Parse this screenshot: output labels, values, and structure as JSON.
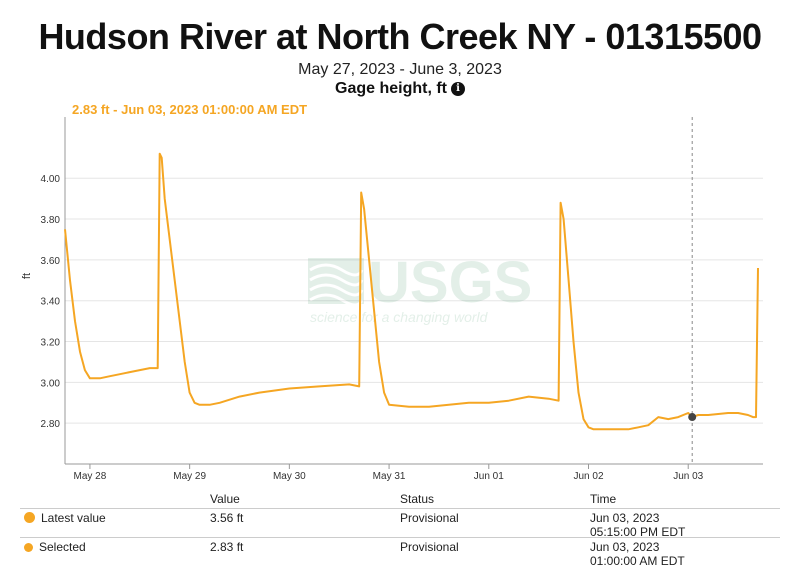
{
  "title": "Hudson River at North Creek NY - 01315500",
  "subtitle": "May 27, 2023 - June 3, 2023",
  "parameter": "Gage height, ft",
  "info_icon": "info-icon",
  "tooltip": "2.83 ft - Jun 03, 2023 01:00:00 AM EDT",
  "watermark": {
    "logo": "USGS",
    "tagline": "science for a changing world"
  },
  "colors": {
    "series": "#f5a623",
    "selected_marker": "#444444",
    "grid": "#e5e5e5"
  },
  "chart_data": {
    "type": "line",
    "title": "Hudson River at North Creek NY - 01315500",
    "subtitle": "May 27, 2023 - June 3, 2023",
    "ylabel": "ft",
    "xlabel": "",
    "ylim": [
      2.6,
      4.3
    ],
    "yticks": [
      2.8,
      3.0,
      3.2,
      3.4,
      3.6,
      3.8,
      4.0
    ],
    "ytick_labels": [
      "2.80",
      "3.00",
      "3.20",
      "3.40",
      "3.60",
      "3.80",
      "4.00"
    ],
    "xlim": [
      -0.25,
      6.75
    ],
    "xticks": [
      0,
      1,
      2,
      3,
      4,
      5,
      6
    ],
    "xtick_labels": [
      "May 28",
      "May 29",
      "May 30",
      "May 31",
      "Jun 01",
      "Jun 02",
      "Jun 03"
    ],
    "grid": true,
    "selected_x": 6.04,
    "series": [
      {
        "color": "#f5a623",
        "x": [
          -0.25,
          -0.2,
          -0.15,
          -0.1,
          -0.05,
          0.0,
          0.1,
          0.2,
          0.3,
          0.4,
          0.5,
          0.6,
          0.68,
          0.7,
          0.72,
          0.75,
          0.8,
          0.85,
          0.9,
          0.95,
          1.0,
          1.05,
          1.1,
          1.2,
          1.3,
          1.5,
          1.7,
          2.0,
          2.3,
          2.6,
          2.7,
          2.72,
          2.75,
          2.8,
          2.85,
          2.9,
          2.95,
          3.0,
          3.2,
          3.4,
          3.6,
          3.8,
          4.0,
          4.2,
          4.4,
          4.6,
          4.7,
          4.72,
          4.75,
          4.8,
          4.85,
          4.9,
          4.95,
          5.0,
          5.05,
          5.2,
          5.4,
          5.5,
          5.6,
          5.7,
          5.8,
          5.9,
          6.0,
          6.04,
          6.1,
          6.2,
          6.4,
          6.5,
          6.6,
          6.65,
          6.68,
          6.7
        ],
        "y": [
          3.75,
          3.5,
          3.3,
          3.15,
          3.06,
          3.02,
          3.02,
          3.03,
          3.04,
          3.05,
          3.06,
          3.07,
          3.07,
          4.12,
          4.1,
          3.9,
          3.7,
          3.5,
          3.3,
          3.1,
          2.95,
          2.9,
          2.89,
          2.89,
          2.9,
          2.93,
          2.95,
          2.97,
          2.98,
          2.99,
          2.98,
          3.93,
          3.85,
          3.6,
          3.35,
          3.1,
          2.95,
          2.89,
          2.88,
          2.88,
          2.89,
          2.9,
          2.9,
          2.91,
          2.93,
          2.92,
          2.91,
          3.88,
          3.8,
          3.5,
          3.2,
          2.95,
          2.82,
          2.78,
          2.77,
          2.77,
          2.77,
          2.78,
          2.79,
          2.83,
          2.82,
          2.83,
          2.85,
          2.83,
          2.84,
          2.84,
          2.85,
          2.85,
          2.84,
          2.83,
          2.83,
          3.56
        ]
      }
    ]
  },
  "table": {
    "headers": {
      "value": "Value",
      "status": "Status",
      "time": "Time"
    },
    "rows": [
      {
        "label": "Latest value",
        "value": "3.56 ft",
        "status": "Provisional",
        "time_date": "Jun 03, 2023",
        "time_clock": "05:15:00 PM EDT"
      },
      {
        "label": "Selected",
        "value": "2.83 ft",
        "status": "Provisional",
        "time_date": "Jun 03, 2023",
        "time_clock": "01:00:00 AM EDT"
      }
    ]
  }
}
